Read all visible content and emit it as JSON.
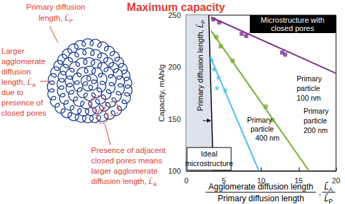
{
  "title": {
    "text": "Maximum capacity",
    "color": "#e03c31"
  },
  "diagram": {
    "color": "#e03c31",
    "labels": [
      {
        "lines": [
          "Primary diffusion",
          {
            "text": "length, ",
            "symbol": "L̄",
            "subscript": "P"
          }
        ]
      },
      {
        "lines": [
          "Larger",
          "agglomerate",
          "diffusion",
          {
            "text": "length, ",
            "symbol": "L̄",
            "subscript": "A"
          },
          "due to",
          "presence of",
          "closed pores"
        ]
      },
      {
        "lines": [
          "Presence of adjacent",
          "closed pores means",
          "larger agglomerate",
          {
            "text": "diffusion length, ",
            "symbol": "L̄",
            "subscript": "A"
          }
        ]
      }
    ]
  },
  "chart_data": {
    "type": "line",
    "ylabel": "Capacity, mAh/g",
    "xlabel": {
      "numerator": "Agglomerate diffusion length",
      "denominator": "Primary diffusion length",
      "separator": ",",
      "numerator_symbol": {
        "symbol": "L̄",
        "subscript": "A"
      },
      "denominator_symbol": {
        "symbol": "L̄",
        "subscript": "P"
      }
    },
    "xlim": [
      0,
      20
    ],
    "xticks": [
      0,
      5,
      10,
      15,
      20
    ],
    "ylim": [
      100,
      250
    ],
    "yticks": [
      100,
      150,
      200,
      250
    ],
    "grid": false,
    "series": [
      {
        "name": "Primary particle 100 nm",
        "type": "line",
        "color": "#7e2f8e",
        "line_style": "solid",
        "x": [
          3.3,
          20
        ],
        "values": [
          248,
          194
        ]
      },
      {
        "name": "Primary particle 200 nm",
        "type": "line",
        "color": "#77ac30",
        "line_style": "solid",
        "x": [
          3.3,
          16.4
        ],
        "values": [
          235,
          100
        ]
      },
      {
        "name": "Primary particle 400 nm",
        "type": "line",
        "color": "#4dbeee",
        "line_style": "solid",
        "x": [
          3.2,
          9.7
        ],
        "values": [
          210,
          100
        ]
      },
      {
        "type": "scatter",
        "color": "#7e2f8e",
        "marker": "square",
        "x": [
          3.6,
          4.4,
          7.4,
          8.0,
          12.8,
          13.2
        ],
        "values": [
          246,
          243,
          232,
          230,
          214,
          212
        ]
      },
      {
        "type": "scatter",
        "color": "#77ac30",
        "marker": "square",
        "x": [
          4.0,
          4.6,
          6.2,
          10.6,
          11.5
        ],
        "values": [
          229,
          220,
          206,
          162,
          149
        ]
      },
      {
        "type": "scatter",
        "color": "#4dbeee",
        "marker": "star",
        "x": [
          3.4,
          3.7,
          4.3,
          4.1,
          5.2
        ],
        "values": [
          207,
          198,
          190,
          180,
          178
        ]
      }
    ],
    "boundary": {
      "x": [
        3.0,
        3.6
      ],
      "values": [
        250,
        100
      ],
      "color": "#000000",
      "fill_color": "#dde3ec"
    },
    "annotations": [
      {
        "lines": [
          {
            "text": "Primary diffusion length, ",
            "symbol": "L̄",
            "subscript": "P"
          }
        ]
      },
      {
        "lines": [
          "Ideal",
          "microstructure"
        ]
      },
      {
        "lines": [
          "Microstructure with",
          "closed pores"
        ]
      }
    ]
  }
}
